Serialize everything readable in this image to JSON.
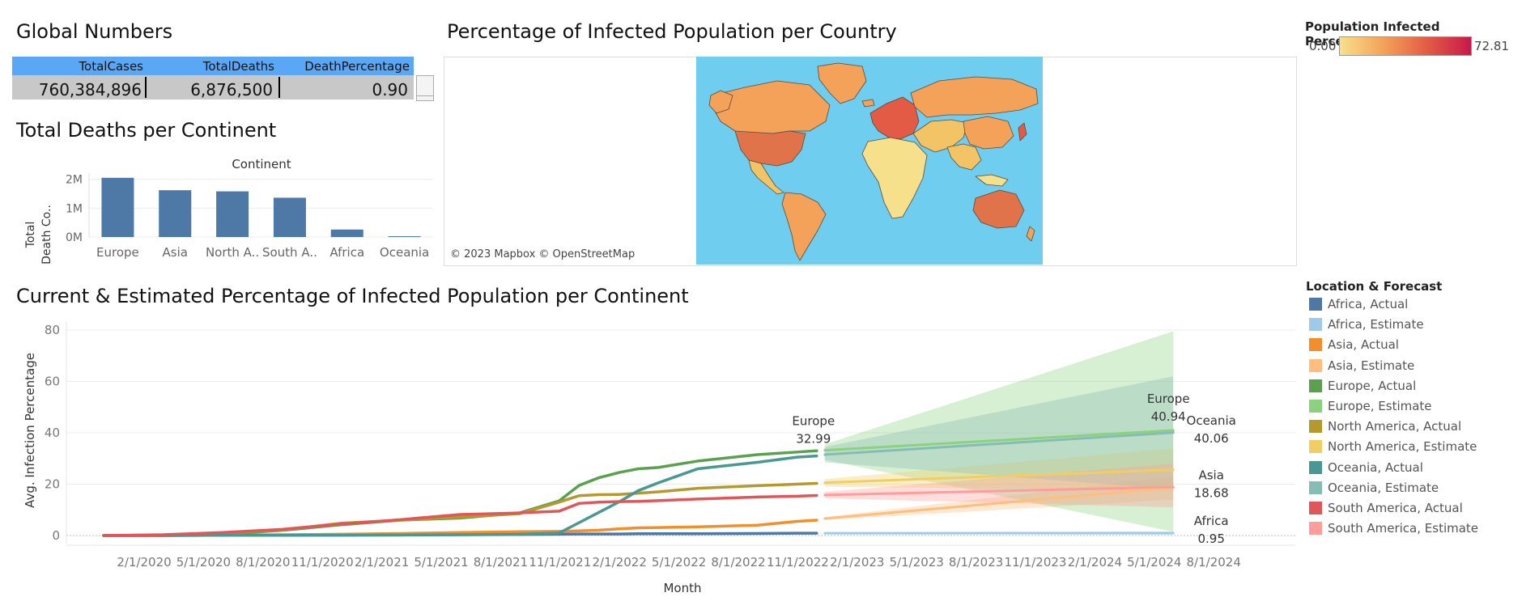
{
  "headings": {
    "global": "Global Numbers",
    "map": "Percentage of Infected Population per Country",
    "deaths": "Total Deaths per Continent",
    "line": "Current & Estimated Percentage of Infected Population per Continent"
  },
  "global_table": {
    "columns": [
      "TotalCases",
      "TotalDeaths",
      "DeathPercentage"
    ],
    "values": [
      "760,384,896",
      "6,876,500",
      "0.90"
    ]
  },
  "map": {
    "credit": "© 2023 Mapbox © OpenStreetMap",
    "legend_title": "Population Infected Percentage",
    "legend_min": "0.00",
    "legend_max": "72.81",
    "colors": {
      "ocean": "#6fcdef",
      "low": "#f7e08b",
      "mid": "#f4a259",
      "high": "#c9184a"
    }
  },
  "line_legend": {
    "title": "Location & Forecast",
    "items": [
      {
        "label": "Africa, Actual",
        "color": "#4e79a7"
      },
      {
        "label": "Africa, Estimate",
        "color": "#a0cbe8"
      },
      {
        "label": "Asia, Actual",
        "color": "#f28e2b"
      },
      {
        "label": "Asia, Estimate",
        "color": "#ffbe7d"
      },
      {
        "label": "Europe, Actual",
        "color": "#59a14f"
      },
      {
        "label": "Europe, Estimate",
        "color": "#8cd17d"
      },
      {
        "label": "North America, Actual",
        "color": "#b6992d"
      },
      {
        "label": "North America, Estimate",
        "color": "#f1ce63"
      },
      {
        "label": "Oceania, Actual",
        "color": "#499894"
      },
      {
        "label": "Oceania, Estimate",
        "color": "#86bcb6"
      },
      {
        "label": "South America, Actual",
        "color": "#e15759"
      },
      {
        "label": "South America, Estimate",
        "color": "#ff9d9a"
      }
    ]
  },
  "chart_data": [
    {
      "type": "bar",
      "title": "Total Deaths per Continent",
      "header": "Continent",
      "ylabel": "Total Death Co..",
      "categories": [
        "Europe",
        "Asia",
        "North A..",
        "South A..",
        "Africa",
        "Oceania"
      ],
      "values": [
        2050000,
        1620000,
        1580000,
        1360000,
        259000,
        27000
      ],
      "ylim": [
        0,
        2100000
      ],
      "yticks": [
        0,
        1000000,
        2000000
      ],
      "ytick_labels": [
        "0M",
        "1M",
        "2M"
      ],
      "color": "#4e79a7"
    },
    {
      "type": "line",
      "title": "Current & Estimated Percentage of Infected Population per Continent",
      "xlabel": "Month",
      "ylabel": "Avg. Infection Percentage",
      "ylim": [
        0,
        80
      ],
      "yticks": [
        0,
        20,
        40,
        60,
        80
      ],
      "x_ticks": [
        "2/1/2020",
        "5/1/2020",
        "8/1/2020",
        "11/1/2020",
        "2/1/2021",
        "5/1/2021",
        "8/1/2021",
        "11/1/2021",
        "2/1/2022",
        "5/1/2022",
        "8/1/2022",
        "11/1/2022",
        "2/1/2023",
        "5/1/2023",
        "8/1/2023",
        "11/1/2023",
        "2/1/2024",
        "5/1/2024",
        "8/1/2024"
      ],
      "actual_x": [
        "2/1/2020",
        "5/1/2020",
        "8/1/2020",
        "11/1/2020",
        "2/1/2021",
        "5/1/2021",
        "8/1/2021",
        "11/1/2021",
        "1/1/2022",
        "2/1/2022",
        "3/1/2022",
        "4/1/2022",
        "5/1/2022",
        "6/1/2022",
        "8/1/2022",
        "11/1/2022",
        "1/1/2023",
        "2/1/2023"
      ],
      "estimate_x": [
        "2/1/2023",
        "8/1/2024"
      ],
      "series": [
        {
          "name": "Africa, Actual",
          "color": "#4e79a7",
          "values": [
            0,
            0,
            0.1,
            0.1,
            0.2,
            0.2,
            0.3,
            0.4,
            0.5,
            0.6,
            0.6,
            0.6,
            0.7,
            0.7,
            0.7,
            0.8,
            0.9,
            0.9
          ]
        },
        {
          "name": "Asia, Actual",
          "color": "#f28e2b",
          "values": [
            0,
            0,
            0.2,
            0.3,
            0.5,
            0.8,
            1.2,
            1.5,
            1.6,
            1.8,
            2.1,
            2.6,
            3.0,
            3.1,
            3.4,
            4.0,
            5.5,
            6.0
          ]
        },
        {
          "name": "Europe, Actual",
          "color": "#59a14f",
          "values": [
            0,
            0.1,
            0.5,
            2.0,
            4.2,
            6.0,
            6.8,
            8.8,
            13.5,
            19.5,
            22.5,
            24.5,
            26.0,
            26.5,
            29.0,
            31.5,
            32.5,
            32.99
          ]
        },
        {
          "name": "North America, Actual",
          "color": "#b6992d",
          "values": [
            0,
            0.2,
            1.0,
            2.2,
            4.8,
            6.0,
            7.2,
            8.5,
            13.0,
            15.5,
            15.9,
            16.0,
            16.5,
            17.0,
            18.4,
            19.4,
            20.0,
            20.3
          ]
        },
        {
          "name": "Oceania, Actual",
          "color": "#499894",
          "values": [
            0,
            0,
            0.1,
            0.1,
            0.1,
            0.2,
            0.3,
            0.5,
            1.0,
            5.0,
            9.0,
            13.0,
            17.5,
            20.5,
            26.0,
            28.5,
            30.5,
            31.0
          ]
        },
        {
          "name": "South America, Actual",
          "color": "#e15759",
          "values": [
            0,
            0.3,
            1.2,
            2.4,
            4.5,
            6.2,
            8.2,
            8.8,
            9.5,
            12.5,
            13.0,
            13.2,
            13.3,
            13.6,
            14.2,
            15.0,
            15.3,
            15.6
          ]
        },
        {
          "name": "Africa, Estimate",
          "color": "#a0cbe8",
          "values": [
            0.9,
            0.95
          ],
          "band": [
            [
              0.6,
              1.2
            ],
            [
              0.3,
              1.6
            ]
          ]
        },
        {
          "name": "Asia, Estimate",
          "color": "#ffbe7d",
          "values": [
            6.6,
            18.68
          ],
          "band": [
            [
              6.0,
              7.2
            ],
            [
              14.0,
              23.0
            ]
          ]
        },
        {
          "name": "Europe, Estimate",
          "color": "#8cd17d",
          "values": [
            33.2,
            40.94
          ],
          "band": [
            [
              29.5,
              35.5
            ],
            [
              1.5,
              79.5
            ]
          ]
        },
        {
          "name": "North America, Estimate",
          "color": "#f1ce63",
          "values": [
            20.6,
            25.6
          ],
          "band": [
            [
              19.0,
              22.0
            ],
            [
              17.5,
              34.0
            ]
          ]
        },
        {
          "name": "Oceania, Estimate",
          "color": "#86bcb6",
          "values": [
            31.5,
            40.06
          ],
          "band": [
            [
              28.5,
              34.5
            ],
            [
              18.0,
              62.0
            ]
          ]
        },
        {
          "name": "South America, Estimate",
          "color": "#ff9d9a",
          "values": [
            15.8,
            18.9
          ],
          "band": [
            [
              14.5,
              17.0
            ],
            [
              11.0,
              28.0
            ]
          ]
        }
      ],
      "annotations": [
        {
          "label": "Europe",
          "value": "32.99",
          "x": "2/1/2023",
          "y": 32.99
        },
        {
          "label": "Europe",
          "value": "40.94",
          "x": "8/1/2024",
          "y": 40.94
        },
        {
          "label": "Oceania",
          "value": "40.06",
          "x": "8/1/2024",
          "y": 40.06
        },
        {
          "label": "Asia",
          "value": "18.68",
          "x": "8/1/2024",
          "y": 18.68
        },
        {
          "label": "Africa",
          "value": "0.95",
          "x": "8/1/2024",
          "y": 0.95
        }
      ]
    }
  ]
}
